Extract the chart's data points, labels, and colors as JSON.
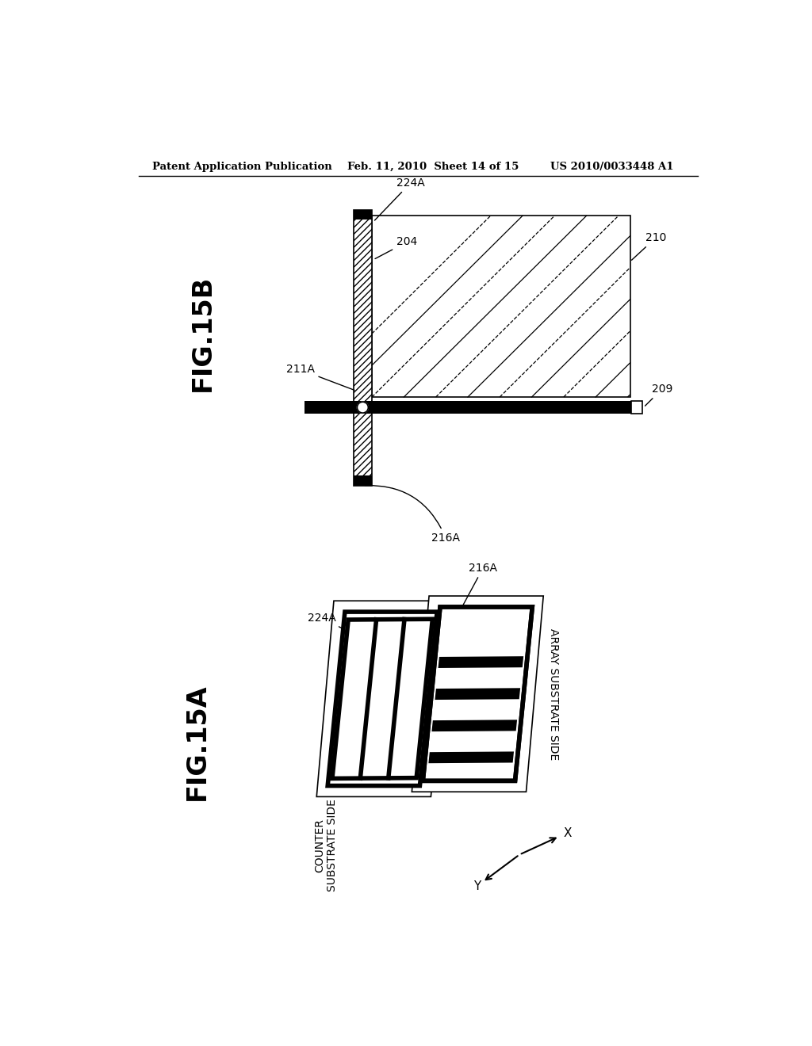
{
  "header_left": "Patent Application Publication",
  "header_mid": "Feb. 11, 2010  Sheet 14 of 15",
  "header_right": "US 2010/0033448 A1",
  "fig15b_label": "FIG.15B",
  "fig15a_label": "FIG.15A",
  "bg_color": "#ffffff",
  "line_color": "#000000"
}
